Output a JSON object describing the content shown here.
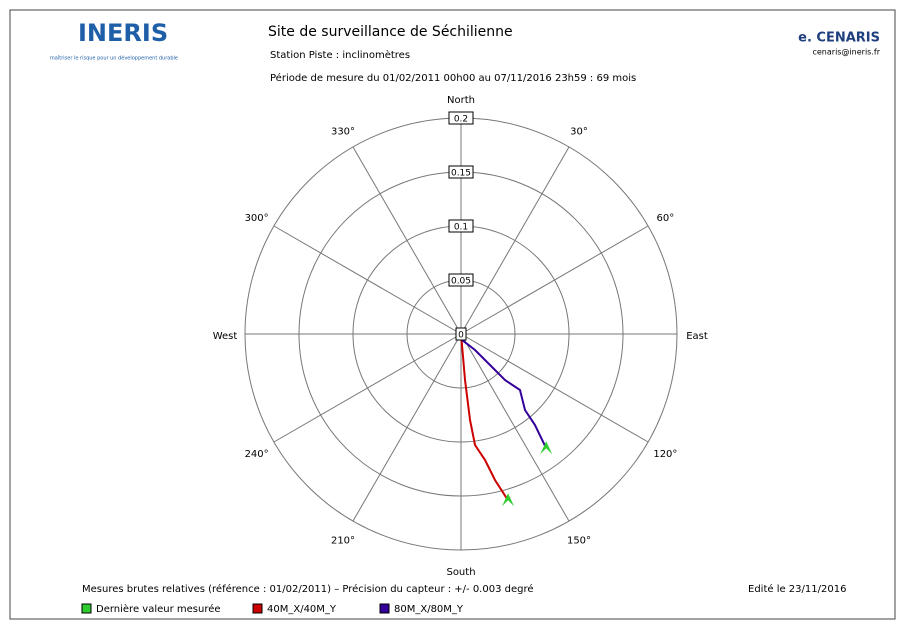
{
  "header": {
    "logo": "INERIS",
    "tagline": "maîtriser le risque pour un développement durable",
    "logo_right": "e. CENARIS",
    "email": "cenaris@ineris.fr"
  },
  "chart_data": {
    "type": "polar",
    "title": "Site de surveillance de Séchilienne",
    "subtitle": "Station Piste : inclinomètres",
    "period": "Période de mesure du 01/02/2011 00h00 au 07/11/2016 23h59 : 69 mois",
    "rlim": [
      0,
      0.2
    ],
    "rticks": [
      0,
      0.05,
      0.1,
      0.15,
      0.2
    ],
    "thetaticks": [
      {
        "value": 0,
        "label": "North"
      },
      {
        "value": 30,
        "label": "30°"
      },
      {
        "value": 60,
        "label": "60°"
      },
      {
        "value": 90,
        "label": "East"
      },
      {
        "value": 120,
        "label": "120°"
      },
      {
        "value": 150,
        "label": "150°"
      },
      {
        "value": 180,
        "label": "South"
      },
      {
        "value": 210,
        "label": "210°"
      },
      {
        "value": 240,
        "label": "240°"
      },
      {
        "value": 270,
        "label": "West"
      },
      {
        "value": 300,
        "label": "300°"
      },
      {
        "value": 330,
        "label": "330°"
      }
    ],
    "grid": true,
    "last_value_marker": {
      "name": "Dernière valeur mesurée",
      "color": "#2ecc2e"
    },
    "series": [
      {
        "name": "40M_X/40M_Y",
        "color": "#cc0000",
        "r": [
          0,
          0.0102,
          0.0428,
          0.0801,
          0.1036,
          0.1188,
          0.1388,
          0.16
        ],
        "theta": [
          0,
          174.8,
          175.0,
          174.0,
          172.8,
          169.2,
          166.9,
          164.2
        ]
      },
      {
        "name": "80M_X/80M_Y",
        "color": "#330099",
        "r": [
          0,
          0.0056,
          0.0197,
          0.0393,
          0.0589,
          0.0753,
          0.092,
          0.1086,
          0.132
        ],
        "theta": [
          0,
          170.5,
          138.8,
          136.9,
          136.3,
          133.5,
          139.9,
          140.9,
          143.3
        ]
      }
    ],
    "footnote": "Mesures brutes relatives (référence : 01/02/2011) – Précision du capteur : +/- 0.003 degré",
    "edited": "Edité le 23/11/2016"
  }
}
